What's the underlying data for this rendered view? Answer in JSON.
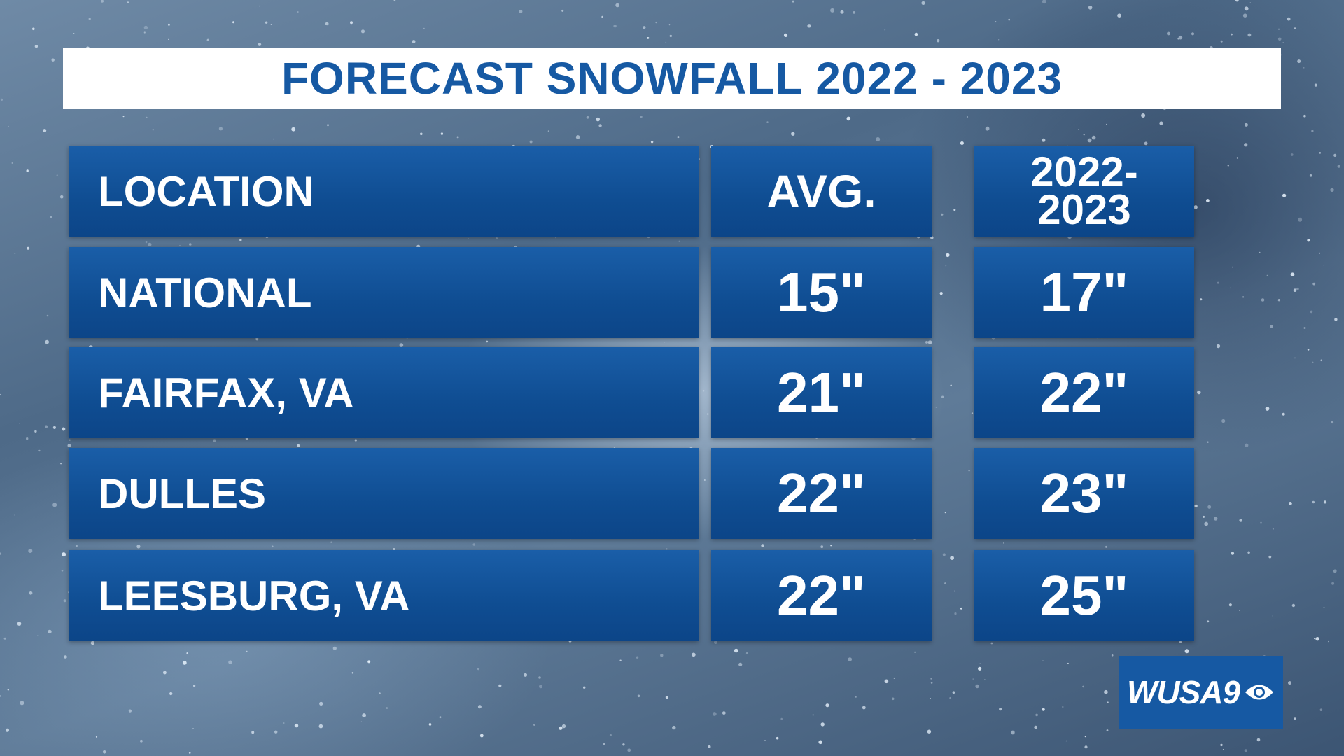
{
  "title": "FORECAST SNOWFALL 2022 - 2023",
  "table": {
    "header": [
      "LOCATION",
      "AVG.",
      "2022-2023"
    ],
    "rows": [
      [
        "NATIONAL",
        "15\"",
        "17\""
      ],
      [
        "FAIRFAX, VA",
        "21\"",
        "22\""
      ],
      [
        "DULLES",
        "22\"",
        "23\""
      ],
      [
        "LEESBURG, VA",
        "22\"",
        "25\""
      ]
    ]
  },
  "logo": "WUSA9"
}
